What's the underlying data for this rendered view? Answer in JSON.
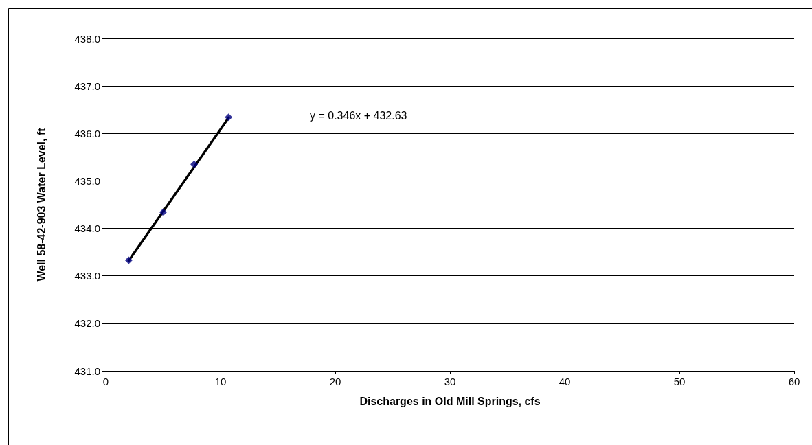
{
  "chart_data": {
    "type": "scatter",
    "xlabel": "Discharges in Old Mill Springs, cfs",
    "ylabel": "Well 58-42-903 Water Level, ft",
    "annotations": [
      "y = 0.346x + 432.63"
    ],
    "series": [
      {
        "color": "#000080",
        "marker": "diamond",
        "x": [
          2.0,
          5.0,
          7.7,
          10.7
        ],
        "values": [
          433.33,
          434.34,
          435.35,
          436.34
        ]
      },
      {
        "type": "line",
        "color": "#000000",
        "marker": "none",
        "line_style": "solid",
        "x": [
          2.0,
          10.7
        ],
        "values": [
          433.32,
          436.33
        ]
      }
    ],
    "xlim": [
      0,
      60
    ],
    "xticks": [
      0,
      10,
      20,
      30,
      40,
      50,
      60
    ],
    "ylim": [
      431,
      438
    ],
    "yticks": [
      {
        "value": 431,
        "label": "431.0"
      },
      {
        "value": 432,
        "label": "432.0"
      },
      {
        "value": 433,
        "label": "433.0"
      },
      {
        "value": 434,
        "label": "434.0"
      },
      {
        "value": 435,
        "label": "435.0"
      },
      {
        "value": 436,
        "label": "436.0"
      },
      {
        "value": 437,
        "label": "437.0"
      },
      {
        "value": 438,
        "label": "438.0"
      }
    ],
    "grid": "y"
  }
}
